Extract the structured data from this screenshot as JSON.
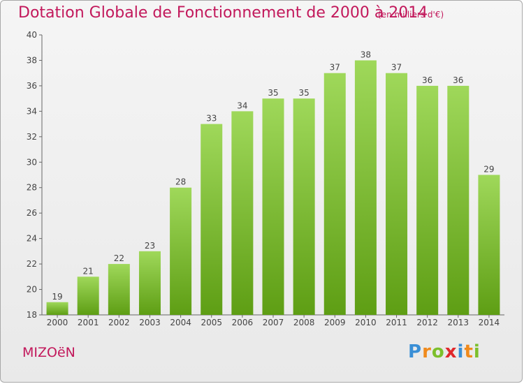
{
  "chart_data": {
    "type": "bar",
    "title": "Dotation Globale de Fonctionnement de 2000 à 2014",
    "subtitle": "(en milliers d'€)",
    "categories": [
      "2000",
      "2001",
      "2002",
      "2003",
      "2004",
      "2005",
      "2006",
      "2007",
      "2008",
      "2009",
      "2010",
      "2011",
      "2012",
      "2013",
      "2014"
    ],
    "values": [
      19,
      21,
      22,
      23,
      28,
      33,
      34,
      35,
      35,
      37,
      38,
      37,
      36,
      36,
      29
    ],
    "ylim": [
      18,
      40
    ],
    "yticks": [
      18,
      20,
      22,
      24,
      26,
      28,
      30,
      32,
      34,
      36,
      38,
      40
    ],
    "grid": false,
    "colors": {
      "bar_top": "#9fd85a",
      "bar_bottom": "#5e9e14",
      "title": "#c2185b",
      "axis": "#555555"
    }
  },
  "footer": {
    "commune": "MIZOëN",
    "logo": [
      "P",
      "r",
      "o",
      "x",
      "i",
      "t",
      "i"
    ],
    "logo_colors": [
      "#3a8fd6",
      "#f08a1c",
      "#7cbf2c",
      "#e0282c",
      "#3a8fd6",
      "#f08a1c",
      "#7cbf2c"
    ]
  }
}
